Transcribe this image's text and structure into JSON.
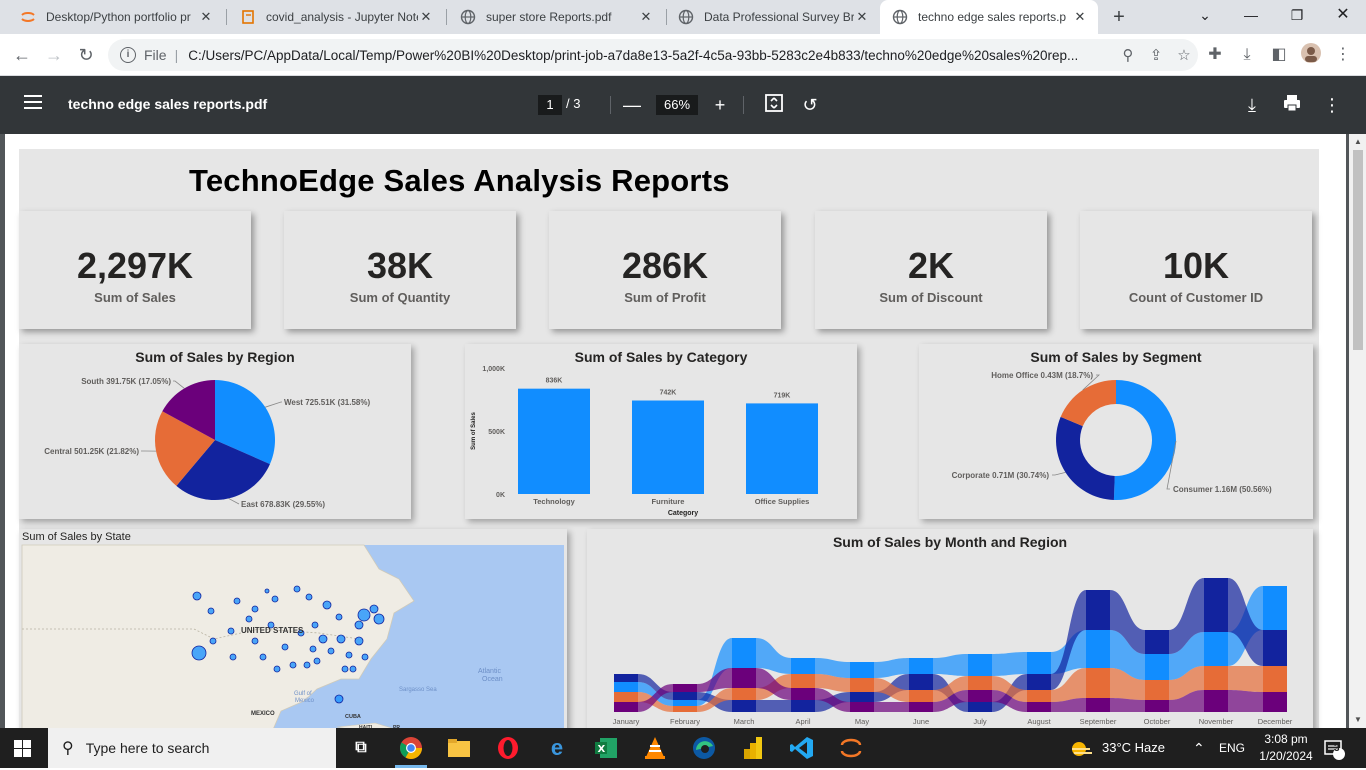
{
  "browser": {
    "tabs": [
      {
        "title": "Desktop/Python portfolio pr",
        "icon": "jupyter-icon",
        "active": false
      },
      {
        "title": "covid_analysis - Jupyter Note",
        "icon": "notebook-icon",
        "active": false
      },
      {
        "title": "super store Reports.pdf",
        "icon": "globe-icon",
        "active": false
      },
      {
        "title": "Data Professional Survey Bre",
        "icon": "globe-icon",
        "active": false
      },
      {
        "title": "techno edge sales reports.p",
        "icon": "globe-icon",
        "active": true
      }
    ],
    "address": {
      "scheme_label": "File",
      "url": "C:/Users/PC/AppData/Local/Temp/Power%20BI%20Desktop/print-job-a7da8e13-5a2f-4c5a-93bb-5283c2e4b833/techno%20edge%20sales%20rep..."
    }
  },
  "pdf_viewer": {
    "file_name": "techno edge sales reports.pdf",
    "current_page": "1",
    "page_total": "/  3",
    "zoom": "66%"
  },
  "report": {
    "title": "TechnoEdge Sales Analysis Reports",
    "kpis": [
      {
        "value": "2,297K",
        "label": "Sum of Sales"
      },
      {
        "value": "38K",
        "label": "Sum of Quantity"
      },
      {
        "value": "286K",
        "label": "Sum of Profit"
      },
      {
        "value": "2K",
        "label": "Sum of Discount"
      },
      {
        "value": "10K",
        "label": "Count of Customer ID"
      }
    ],
    "region_pie": {
      "title": "Sum of Sales by Region",
      "slices": [
        {
          "label": "West 725.51K (31.58%)",
          "value": 31.58,
          "color": "#118DFF"
        },
        {
          "label": "East 678.83K (29.55%)",
          "value": 29.55,
          "color": "#12239E"
        },
        {
          "label": "Central 501.25K (21.82%)",
          "value": 21.82,
          "color": "#E66C37"
        },
        {
          "label": "South 391.75K (17.05%)",
          "value": 17.05,
          "color": "#6B007B"
        }
      ]
    },
    "category_bar": {
      "title": "Sum of Sales by Category",
      "ylabel": "Sum of Sales",
      "xlabel": "Category",
      "ticks": [
        "1,000K",
        "500K",
        "0K"
      ],
      "categories": [
        "Technology",
        "Furniture",
        "Office Supplies"
      ],
      "values": [
        836,
        742,
        719
      ],
      "value_labels": [
        "836K",
        "742K",
        "719K"
      ],
      "ymax": 1000,
      "color": "#118DFF"
    },
    "segment_donut": {
      "title": "Sum of Sales by Segment",
      "slices": [
        {
          "label": "Consumer 1.16M (50.56%)",
          "value": 50.56,
          "color": "#118DFF"
        },
        {
          "label": "Corporate 0.71M (30.74%)",
          "value": 30.74,
          "color": "#12239E"
        },
        {
          "label": "Home Office 0.43M (18.7%)",
          "value": 18.7,
          "color": "#E66C37"
        }
      ]
    },
    "state_map": {
      "title": "Sum of Sales by State",
      "labels": {
        "country": "UNITED STATES",
        "gulf": "Gulf of\nMexico",
        "gulf_line1": "Gulf of",
        "gulf_line2": "Mexico",
        "atlantic1": "Atlantic",
        "atlantic2": "Ocean",
        "sargasso": "Sargasso Sea",
        "mexico": "MEXICO",
        "cuba": "CUBA",
        "haiti": "HAITI",
        "pr": "PR"
      }
    },
    "ribbon_chart": {
      "title": "Sum of Sales by Month and Region",
      "months": [
        "January",
        "February",
        "March",
        "April",
        "May",
        "June",
        "July",
        "August",
        "September",
        "October",
        "November",
        "December"
      ]
    }
  },
  "chart_data": [
    {
      "type": "pie",
      "title": "Sum of Sales by Region",
      "categories": [
        "West",
        "East",
        "Central",
        "South"
      ],
      "values": [
        725.51,
        678.83,
        501.25,
        391.75
      ],
      "percentages": [
        31.58,
        29.55,
        21.82,
        17.05
      ]
    },
    {
      "type": "bar",
      "title": "Sum of Sales by Category",
      "categories": [
        "Technology",
        "Furniture",
        "Office Supplies"
      ],
      "values": [
        836,
        742,
        719
      ],
      "xlabel": "Category",
      "ylabel": "Sum of Sales",
      "ylim": [
        0,
        1000
      ]
    },
    {
      "type": "pie",
      "title": "Sum of Sales by Segment",
      "categories": [
        "Consumer",
        "Corporate",
        "Home Office"
      ],
      "values": [
        1.16,
        0.71,
        0.43
      ],
      "percentages": [
        50.56,
        30.74,
        18.7
      ]
    }
  ],
  "taskbar": {
    "search_placeholder": "Type here to search",
    "weather": "33°C  Haze",
    "lang": "ENG",
    "time": "3:08 pm",
    "date": "1/20/2024",
    "notifications": "3"
  }
}
